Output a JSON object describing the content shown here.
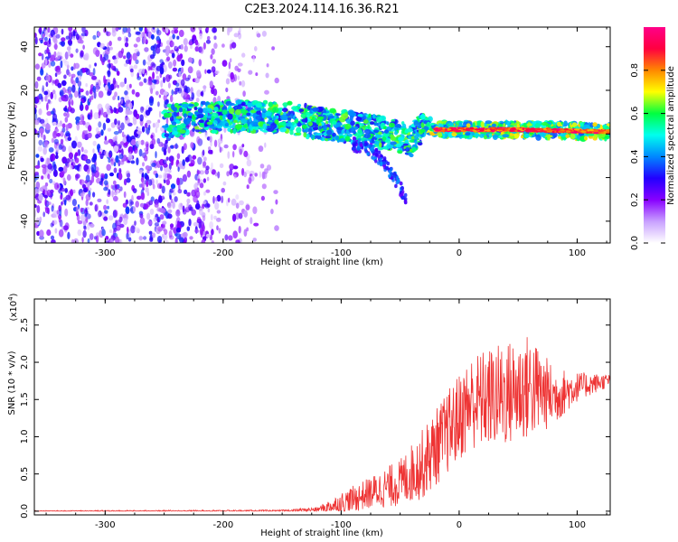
{
  "title": "C2E3.2024.114.16.36.R21",
  "chart_data": [
    {
      "type": "heatmap",
      "xlabel": "Height of straight line (km)",
      "ylabel": "Frequency (Hz)",
      "xlim": [
        -360,
        128
      ],
      "ylim": [
        -50,
        49
      ],
      "xticks": [
        -300,
        -200,
        -100,
        0,
        100
      ],
      "yticks": [
        -40,
        -20,
        0,
        20,
        40
      ],
      "description_of_structure": {
        "noise_region_x": [
          -360,
          -150
        ],
        "noise_fade_x": [
          -240,
          -150
        ],
        "signal_band": [
          {
            "x": -250,
            "f": 6
          },
          {
            "x": -200,
            "f": 8
          },
          {
            "x": -150,
            "f": 8
          },
          {
            "x": -120,
            "f": 5
          },
          {
            "x": -90,
            "f": 3
          },
          {
            "x": -60,
            "f": 0
          },
          {
            "x": -40,
            "f": -3
          },
          {
            "x": -30,
            "f": 5
          },
          {
            "x": -20,
            "f": 2
          },
          {
            "x": 0,
            "f": 2
          },
          {
            "x": 50,
            "f": 2
          },
          {
            "x": 128,
            "f": 1
          }
        ],
        "downward_tail": {
          "x": [
            -90,
            -45
          ],
          "f": [
            -5,
            -30
          ]
        }
      },
      "colorbar": {
        "label": "Normalized spectral amplitude",
        "range": [
          0.0,
          1.0
        ],
        "ticks": [
          "0.0",
          "0.2",
          "0.4",
          "0.6",
          "0.8"
        ],
        "colors": [
          "#ffffff",
          "#c8a0ff",
          "#8800ff",
          "#2200ff",
          "#0088ff",
          "#00ffee",
          "#00ff40",
          "#ffff00",
          "#ff8800",
          "#ff0040",
          "#ff0088"
        ]
      }
    },
    {
      "type": "line",
      "xlabel": "Height of straight line (km)",
      "ylabel": "SNR (10 * v/v)",
      "y_scale_label": "(x10",
      "y_scale_exp": "4",
      "y_scale_close": ")",
      "xlim": [
        -360,
        128
      ],
      "ylim": [
        -0.05,
        2.85
      ],
      "xticks": [
        -300,
        -200,
        -100,
        0,
        100
      ],
      "yticks": [
        "0.0",
        "0.5",
        "1.0",
        "1.5",
        "2.0",
        "2.5"
      ],
      "ytick_values": [
        0.0,
        0.5,
        1.0,
        1.5,
        2.0,
        2.5
      ],
      "series": [
        {
          "name": "SNR",
          "color": "#ee3333",
          "envelope": {
            "x": [
              -360,
              -150,
              -120,
              -100,
              -80,
              -50,
              -30,
              -10,
              10,
              40,
              60,
              80,
              100,
              128
            ],
            "base": [
              0.0,
              0.0,
              0.02,
              0.08,
              0.2,
              0.35,
              0.6,
              1.0,
              1.4,
              1.5,
              1.6,
              1.5,
              1.65,
              1.75
            ],
            "amp": [
              0.01,
              0.02,
              0.04,
              0.2,
              0.25,
              0.4,
              0.6,
              0.7,
              0.8,
              0.9,
              0.9,
              0.5,
              0.25,
              0.1
            ]
          }
        }
      ]
    }
  ]
}
